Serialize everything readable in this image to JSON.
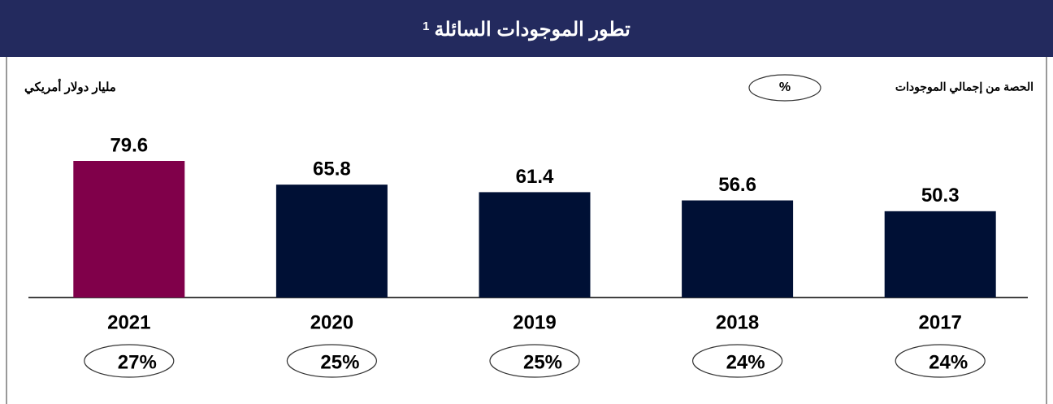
{
  "chart_data": {
    "type": "bar",
    "title": "تطور الموجودات السائلة",
    "title_note": "1",
    "unit_label": "مليار دولار أمريكي",
    "categories": [
      "2021",
      "2020",
      "2019",
      "2018",
      "2017"
    ],
    "values": [
      79.6,
      65.8,
      61.4,
      56.6,
      50.3
    ],
    "colors": [
      "#80004a",
      "#001035",
      "#001035",
      "#001035",
      "#001035"
    ],
    "share": {
      "label": "الحصة من إجمالي الموجودات",
      "symbol": "%",
      "values": [
        27,
        25,
        25,
        24,
        24
      ],
      "value_labels": [
        "27%",
        "25%",
        "25%",
        "24%",
        "24%"
      ]
    }
  }
}
